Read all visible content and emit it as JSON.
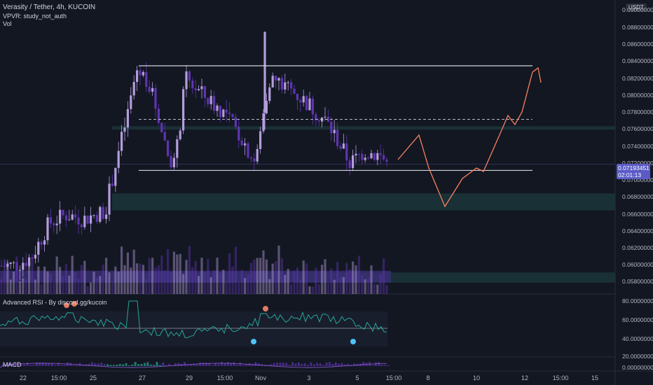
{
  "header": {
    "symbol_title": "Verasity / Tether, 4h, KUCOIN",
    "indicator_vpvr": "VPVR: study_not_auth",
    "indicator_vol": "Vol",
    "currency": "USDT"
  },
  "price_axis": {
    "labels": [
      "0.09000000",
      "0.08800000",
      "0.08600000",
      "0.08400000",
      "0.08200000",
      "0.08000000",
      "0.07800000",
      "0.07600000",
      "0.07400000",
      "0.07200000",
      "0.07000000",
      "0.06800000",
      "0.06600000",
      "0.06400000",
      "0.06200000",
      "0.06000000",
      "0.05800000"
    ],
    "last_price": "0.07193451",
    "countdown": "02:01:13"
  },
  "rsi_panel": {
    "title": "Advanced RSI - By discord.gg/kucoin",
    "axis_labels": [
      "80.00000000",
      "60.00000000",
      "40.00000000"
    ]
  },
  "macd_panel": {
    "title": "MACD",
    "axis_labels": [
      "20.00000000",
      "0.00000000"
    ]
  },
  "time_axis": {
    "labels": [
      "22",
      "15:00",
      "25",
      "27",
      "29",
      "15:00",
      "Nov",
      "3",
      "5",
      "15:00",
      "8",
      "10",
      "12",
      "15:00",
      "15"
    ]
  },
  "colors": {
    "background": "#131722",
    "bull": "#b39ddb",
    "bear": "#5e35b1",
    "rsi_line": "#26a69a",
    "projection": "#f7825e",
    "zone": "#1e3a3f"
  },
  "chart_data": {
    "type": "candlestick",
    "symbol": "Verasity / Tether",
    "interval": "4h",
    "exchange": "KUCOIN",
    "currency": "USDT",
    "last_price": 0.07193451,
    "ylim": [
      0.0572,
      0.0915
    ],
    "horizontal_levels": [
      0.0835,
      0.0712
    ],
    "dashed_level": 0.0772,
    "zones": [
      [
        0.076,
        0.0764
      ],
      [
        0.0665,
        0.0685
      ],
      [
        0.058,
        0.0592
      ]
    ],
    "projection_path": [
      0.071,
      0.074,
      0.075,
      0.07,
      0.068,
      0.072,
      0.071,
      0.074,
      0.076,
      0.077,
      0.078,
      0.083,
      0.0835,
      0.082
    ]
  }
}
